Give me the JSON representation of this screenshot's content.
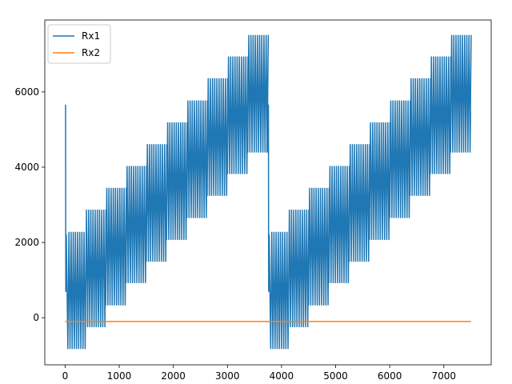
{
  "chart_data": {
    "type": "line",
    "title": "",
    "xlabel": "",
    "ylabel": "",
    "xlim": [
      -376,
      7876
    ],
    "ylim": [
      -1250,
      7910
    ],
    "xticks": [
      0,
      1000,
      2000,
      3000,
      4000,
      5000,
      6000,
      7000
    ],
    "yticks": [
      0,
      2000,
      4000,
      6000
    ],
    "grid": false,
    "legend": {
      "placement": "top-left",
      "entries": [
        "Rx1",
        "Rx2"
      ]
    },
    "series": [
      {
        "name": "Rx1",
        "color": "#1f77b4",
        "description_values": {
          "period_samples": 3750,
          "oscillation_period_samples": 40,
          "initial_value": 5650,
          "steps": [
            {
              "x_start": 50,
              "x_end": 375,
              "min": -820,
              "max": 2270
            },
            {
              "x_start": 375,
              "x_end": 750,
              "min": -240,
              "max": 2860
            },
            {
              "x_start": 750,
              "x_end": 1125,
              "min": 340,
              "max": 3440
            },
            {
              "x_start": 1125,
              "x_end": 1500,
              "min": 930,
              "max": 4020
            },
            {
              "x_start": 1500,
              "x_end": 1875,
              "min": 1500,
              "max": 4600
            },
            {
              "x_start": 1875,
              "x_end": 2250,
              "min": 2080,
              "max": 5180
            },
            {
              "x_start": 2250,
              "x_end": 2625,
              "min": 2660,
              "max": 5760
            },
            {
              "x_start": 2625,
              "x_end": 3000,
              "min": 3250,
              "max": 6350
            },
            {
              "x_start": 3000,
              "x_end": 3375,
              "min": 3830,
              "max": 6930
            },
            {
              "x_start": 3375,
              "x_end": 3750,
              "min": 4400,
              "max": 7500
            }
          ]
        }
      },
      {
        "name": "Rx2",
        "color": "#ff7f0e",
        "constant_value": -100
      }
    ]
  }
}
